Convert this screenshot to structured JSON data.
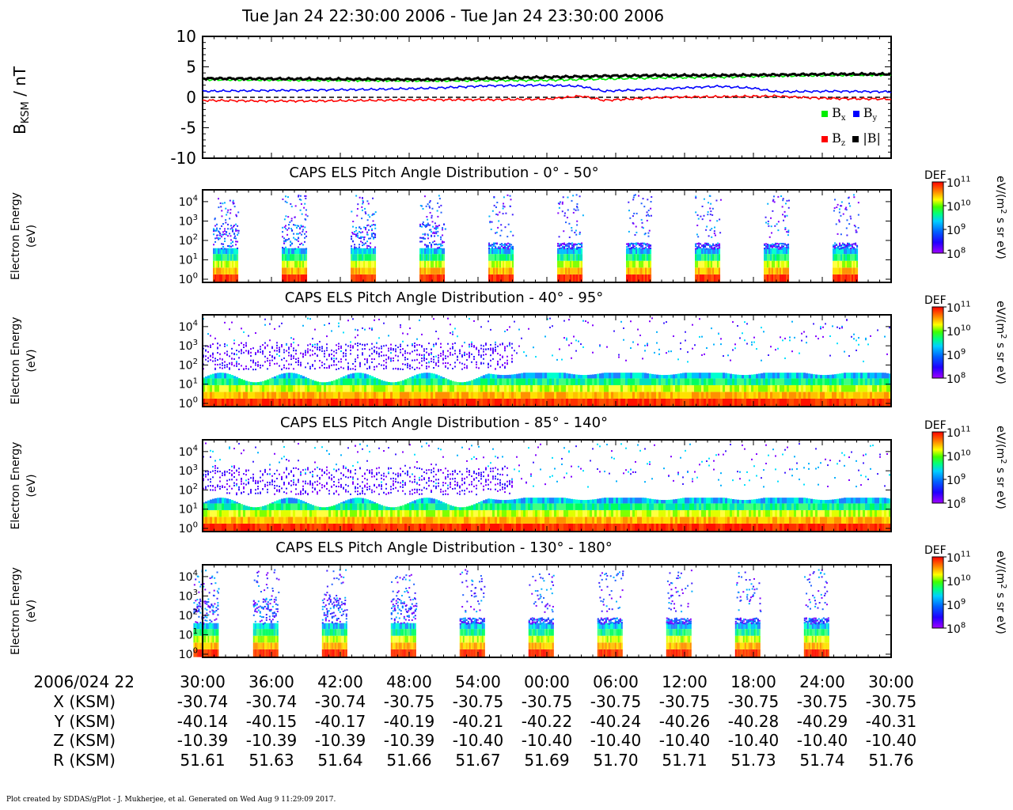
{
  "title": "Tue Jan 24 22:30:00 2006 - Tue Jan 24 23:30:00 2006",
  "footer": "Plot created by SDDAS/gPlot - J. Mukherjee, et al.  Generated on Wed Aug 9 11:29:09 2017.",
  "chart_data": [
    {
      "type": "line",
      "ylabel": "B_KSM / nT",
      "ylim": [
        -10,
        10
      ],
      "yticks": [
        "10",
        "5",
        "0",
        "-5",
        "-10"
      ],
      "x_range_minutes": [
        0,
        60
      ],
      "reference_line": {
        "y": 0,
        "style": "dashed",
        "color": "#000000"
      },
      "legend": {
        "placement": "right",
        "entries": [
          "Bx",
          "By",
          "Bz",
          "|B|"
        ]
      },
      "series": [
        {
          "name": "Bx",
          "color": "#00ee00",
          "x": [
            0,
            10,
            20,
            30,
            35,
            40,
            45,
            50,
            55,
            60
          ],
          "values": [
            2.9,
            2.8,
            2.7,
            2.8,
            3.0,
            3.2,
            3.3,
            3.5,
            3.6,
            3.7
          ]
        },
        {
          "name": "By",
          "color": "#0000ff",
          "x": [
            0,
            5,
            10,
            15,
            20,
            25,
            30,
            33,
            35,
            40,
            45,
            48,
            50,
            55,
            60
          ],
          "values": [
            1.0,
            1.1,
            1.2,
            1.3,
            1.5,
            1.9,
            2.0,
            1.8,
            1.0,
            1.4,
            1.8,
            1.5,
            0.9,
            1.0,
            0.9
          ]
        },
        {
          "name": "Bz",
          "color": "#ff0000",
          "x": [
            0,
            5,
            10,
            15,
            20,
            25,
            30,
            33,
            35,
            38,
            40,
            45,
            50,
            52,
            55,
            60
          ],
          "values": [
            -0.5,
            -0.6,
            -0.6,
            -0.5,
            -0.4,
            -0.4,
            -0.3,
            0.2,
            -0.5,
            -0.2,
            0.0,
            0.1,
            0.2,
            0.0,
            -0.2,
            -0.3
          ]
        },
        {
          "name": "|B|",
          "color": "#000000",
          "x": [
            0,
            10,
            20,
            30,
            35,
            40,
            45,
            50,
            55,
            60
          ],
          "values": [
            3.1,
            3.0,
            2.9,
            3.3,
            3.5,
            3.6,
            3.6,
            3.7,
            3.8,
            3.8
          ]
        }
      ]
    },
    {
      "type": "heatmap",
      "title": "CAPS ELS Pitch Angle Distribution - 0° - 50°",
      "ylabel": [
        "Electron Energy",
        "(eV)"
      ],
      "scale": "log",
      "yticks": [
        "10^4",
        "10^3",
        "10^2",
        "10^1",
        "10^0"
      ],
      "colorbar": {
        "label": "DEF",
        "unit": "eV/(m^2 s sr eV)",
        "ticks": [
          "10^11",
          "10^10",
          "10^9",
          "10^8"
        ]
      },
      "mode": "bursts",
      "bursts_minutes": [
        2.0,
        8.0,
        14.0,
        20.0,
        26.0,
        32.0,
        38.0,
        44.0,
        50.0,
        56.0
      ]
    },
    {
      "type": "heatmap",
      "title": "CAPS ELS Pitch Angle Distribution - 40° - 95°",
      "ylabel": [
        "Electron Energy",
        "(eV)"
      ],
      "scale": "log",
      "yticks": [
        "10^4",
        "10^3",
        "10^2",
        "10^1",
        "10^0"
      ],
      "colorbar": {
        "label": "DEF",
        "unit": "eV/(m^2 s sr eV)",
        "ticks": [
          "10^11",
          "10^10",
          "10^9",
          "10^8"
        ]
      },
      "mode": "continuous"
    },
    {
      "type": "heatmap",
      "title": "CAPS ELS Pitch Angle Distribution - 85° - 140°",
      "ylabel": [
        "Electron Energy",
        "(eV)"
      ],
      "scale": "log",
      "yticks": [
        "10^4",
        "10^3",
        "10^2",
        "10^1",
        "10^0"
      ],
      "colorbar": {
        "label": "DEF",
        "unit": "eV/(m^2 s sr eV)",
        "ticks": [
          "10^11",
          "10^10",
          "10^9",
          "10^8"
        ]
      },
      "mode": "continuous"
    },
    {
      "type": "heatmap",
      "title": "CAPS ELS Pitch Angle Distribution - 130° - 180°",
      "ylabel": [
        "Electron Energy",
        "(eV)"
      ],
      "scale": "log",
      "yticks": [
        "10^4",
        "10^3",
        "10^2",
        "10^1",
        "10^0"
      ],
      "colorbar": {
        "label": "DEF",
        "unit": "eV/(m^2 s sr eV)",
        "ticks": [
          "10^11",
          "10^10",
          "10^9",
          "10^8"
        ]
      },
      "mode": "bursts",
      "bursts_minutes": [
        0.3,
        5.5,
        11.5,
        17.5,
        23.5,
        29.5,
        35.5,
        41.5,
        47.5,
        53.5
      ]
    }
  ],
  "ephemeris": {
    "date_label": "2006/024 22",
    "times": [
      "30:00",
      "36:00",
      "42:00",
      "48:00",
      "54:00",
      "00:00",
      "06:00",
      "12:00",
      "18:00",
      "24:00",
      "30:00"
    ],
    "rows": [
      {
        "label": "X (KSM)",
        "values": [
          "-30.74",
          "-30.74",
          "-30.74",
          "-30.75",
          "-30.75",
          "-30.75",
          "-30.75",
          "-30.75",
          "-30.75",
          "-30.75",
          "-30.75"
        ]
      },
      {
        "label": "Y (KSM)",
        "values": [
          "-40.14",
          "-40.15",
          "-40.17",
          "-40.19",
          "-40.21",
          "-40.22",
          "-40.24",
          "-40.26",
          "-40.28",
          "-40.29",
          "-40.31"
        ]
      },
      {
        "label": "Z (KSM)",
        "values": [
          "-10.39",
          "-10.39",
          "-10.39",
          "-10.39",
          "-10.40",
          "-10.40",
          "-10.40",
          "-10.40",
          "-10.40",
          "-10.40",
          "-10.40"
        ]
      },
      {
        "label": "R (KSM)",
        "values": [
          "51.61",
          "51.63",
          "51.64",
          "51.66",
          "51.67",
          "51.69",
          "51.70",
          "51.71",
          "51.73",
          "51.74",
          "51.76"
        ]
      }
    ]
  }
}
